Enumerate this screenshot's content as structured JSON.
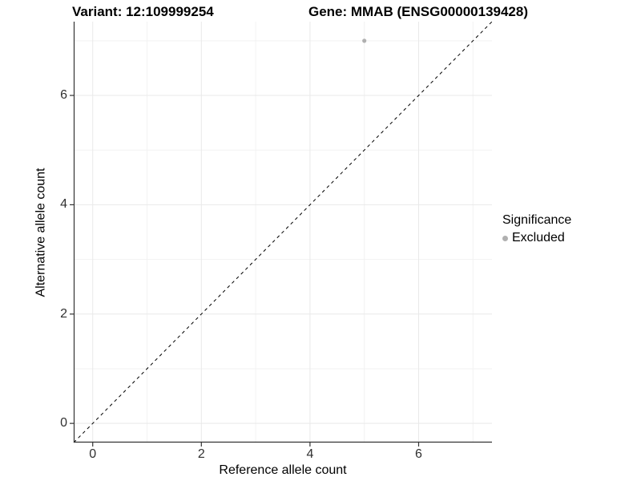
{
  "header": {
    "variant_title": "Variant: 12:109999254",
    "gene_title": "Gene: MMAB (ENSG00000139428)"
  },
  "chart_data": {
    "type": "scatter",
    "title": "Variant: 12:109999254  /  Gene: MMAB (ENSG00000139428)",
    "xlabel": "Reference allele count",
    "ylabel": "Alternative allele count",
    "x": {
      "label": "Reference allele count",
      "ticks": [
        0,
        2,
        4,
        6
      ],
      "minor_ticks": [
        1,
        3,
        5,
        7
      ],
      "range": [
        -0.35,
        7.35
      ]
    },
    "y": {
      "label": "Alternative allele count",
      "ticks": [
        0,
        2,
        4,
        6
      ],
      "minor_ticks": [
        1,
        3,
        5,
        7
      ],
      "range": [
        -0.35,
        7.35
      ]
    },
    "series": [
      {
        "name": "Excluded",
        "color": "#b0b0b0",
        "points": [
          {
            "x": 5,
            "y": 7
          }
        ]
      }
    ],
    "reference_line": {
      "type": "identity",
      "from": [
        -0.35,
        -0.35
      ],
      "to": [
        7.35,
        7.35
      ],
      "style": "dashed",
      "color": "#000000"
    },
    "grid": {
      "on": true,
      "major_color": "#e9e9e9",
      "minor_color": "#f2f2f2"
    },
    "axis_color": "#333333",
    "legend": {
      "title": "Significance",
      "position": "right",
      "items": [
        {
          "label": "Excluded",
          "color": "#b0b0b0"
        }
      ]
    }
  }
}
